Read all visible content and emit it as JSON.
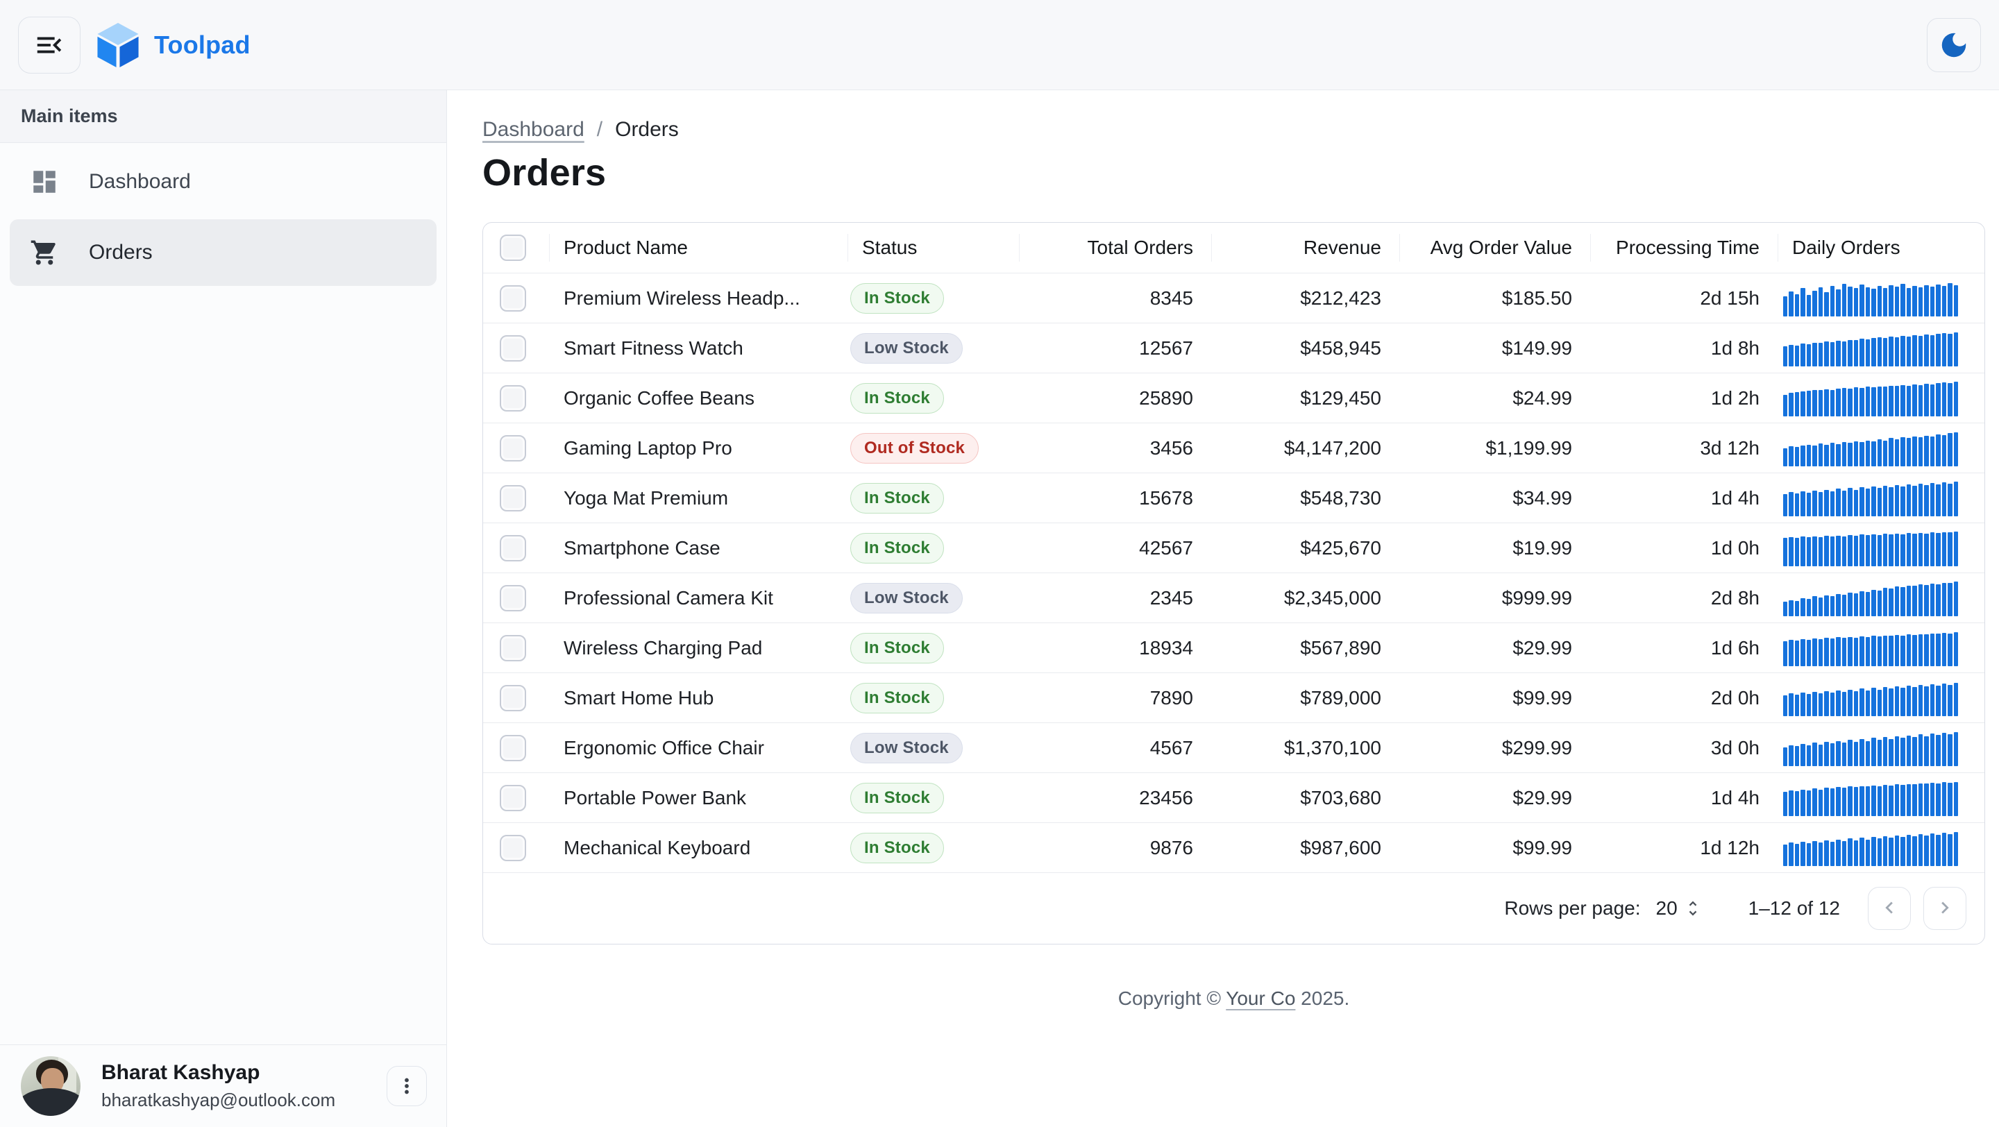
{
  "topbar": {
    "app_name": "Toolpad"
  },
  "theme": {
    "brand_blue": "#1b78e8",
    "logo_top": "#a6d3fb",
    "logo_left": "#2186f0",
    "logo_right": "#1566d8",
    "moon_blue": "#1565c0",
    "spark_blue": "#1572dd"
  },
  "sidebar": {
    "section": "Main items",
    "items": [
      {
        "label": "Dashboard",
        "icon": "dashboard-icon",
        "selected": false
      },
      {
        "label": "Orders",
        "icon": "cart-icon",
        "selected": true
      }
    ]
  },
  "breadcrumb": {
    "parent": "Dashboard",
    "separator": "/",
    "current": "Orders"
  },
  "page": {
    "title": "Orders"
  },
  "status_styles": {
    "in": {
      "text": "#2e7d32",
      "bg": "#f1faf1",
      "border": "#bfe3c0"
    },
    "low": {
      "text": "#4d5666",
      "bg": "#e9ebf2",
      "border": "#d9deea"
    },
    "out": {
      "text": "#b02a20",
      "bg": "#fdefee",
      "border": "#f5c5c2"
    }
  },
  "table": {
    "columns": [
      {
        "key": "checkbox",
        "label": "",
        "align": "left"
      },
      {
        "key": "product",
        "label": "Product Name",
        "align": "left"
      },
      {
        "key": "status",
        "label": "Status",
        "align": "left"
      },
      {
        "key": "total_orders",
        "label": "Total Orders",
        "align": "right"
      },
      {
        "key": "revenue",
        "label": "Revenue",
        "align": "right"
      },
      {
        "key": "avg_order_value",
        "label": "Avg Order Value",
        "align": "right"
      },
      {
        "key": "processing_time",
        "label": "Processing Time",
        "align": "right"
      },
      {
        "key": "daily_orders",
        "label": "Daily Orders",
        "align": "left"
      }
    ],
    "rows": [
      {
        "product": "Premium Wireless Headp...",
        "status": "In Stock",
        "status_type": "in",
        "total_orders": "8345",
        "revenue": "$212,423",
        "avg_order_value": "$185.50",
        "processing_time": "2d 15h",
        "daily_orders": [
          55,
          70,
          62,
          78,
          60,
          72,
          80,
          68,
          85,
          75,
          90,
          82,
          78,
          88,
          80,
          76,
          84,
          79,
          86,
          82,
          90,
          78,
          84,
          80,
          86,
          82,
          88,
          84,
          92,
          86
        ]
      },
      {
        "product": "Smart Fitness Watch",
        "status": "Low Stock",
        "status_type": "low",
        "total_orders": "12567",
        "revenue": "$458,945",
        "avg_order_value": "$149.99",
        "processing_time": "1d 8h",
        "daily_orders": [
          55,
          60,
          58,
          63,
          62,
          66,
          65,
          70,
          68,
          72,
          70,
          74,
          73,
          76,
          75,
          78,
          80,
          78,
          82,
          80,
          84,
          82,
          86,
          85,
          88,
          87,
          90,
          92,
          91,
          95
        ]
      },
      {
        "product": "Organic Coffee Beans",
        "status": "In Stock",
        "status_type": "in",
        "total_orders": "25890",
        "revenue": "$129,450",
        "avg_order_value": "$24.99",
        "processing_time": "1d 2h",
        "daily_orders": [
          60,
          65,
          68,
          70,
          72,
          74,
          73,
          75,
          74,
          76,
          78,
          77,
          80,
          79,
          82,
          81,
          83,
          82,
          85,
          84,
          86,
          85,
          88,
          87,
          90,
          89,
          92,
          94,
          93,
          96
        ]
      },
      {
        "product": "Gaming Laptop Pro",
        "status": "Out of Stock",
        "status_type": "out",
        "total_orders": "3456",
        "revenue": "$4,147,200",
        "avg_order_value": "$1,199.99",
        "processing_time": "3d 12h",
        "daily_orders": [
          50,
          55,
          53,
          58,
          60,
          57,
          63,
          60,
          66,
          62,
          68,
          65,
          70,
          68,
          72,
          70,
          75,
          72,
          78,
          75,
          80,
          78,
          82,
          80,
          85,
          83,
          88,
          86,
          92,
          95
        ]
      },
      {
        "product": "Yoga Mat Premium",
        "status": "In Stock",
        "status_type": "in",
        "total_orders": "15678",
        "revenue": "$548,730",
        "avg_order_value": "$34.99",
        "processing_time": "1d 4h",
        "daily_orders": [
          62,
          68,
          64,
          70,
          66,
          72,
          68,
          74,
          70,
          76,
          72,
          78,
          74,
          80,
          76,
          82,
          78,
          84,
          80,
          86,
          82,
          88,
          84,
          90,
          86,
          92,
          88,
          94,
          90,
          96
        ]
      },
      {
        "product": "Smartphone Case",
        "status": "In Stock",
        "status_type": "in",
        "total_orders": "42567",
        "revenue": "$425,670",
        "avg_order_value": "$19.99",
        "processing_time": "1d 0h",
        "daily_orders": [
          78,
          80,
          79,
          82,
          80,
          83,
          81,
          84,
          82,
          85,
          83,
          86,
          85,
          88,
          86,
          89,
          87,
          90,
          88,
          91,
          89,
          92,
          90,
          93,
          91,
          94,
          92,
          95,
          94,
          96
        ]
      },
      {
        "product": "Professional Camera Kit",
        "status": "Low Stock",
        "status_type": "low",
        "total_orders": "2345",
        "revenue": "$2,345,000",
        "avg_order_value": "$999.99",
        "processing_time": "2d 8h",
        "daily_orders": [
          40,
          45,
          42,
          50,
          48,
          55,
          52,
          58,
          56,
          62,
          60,
          66,
          64,
          70,
          68,
          74,
          72,
          78,
          76,
          82,
          80,
          85,
          84,
          88,
          86,
          90,
          89,
          93,
          92,
          96
        ]
      },
      {
        "product": "Wireless Charging Pad",
        "status": "In Stock",
        "status_type": "in",
        "total_orders": "18934",
        "revenue": "$567,890",
        "avg_order_value": "$29.99",
        "processing_time": "1d 6h",
        "daily_orders": [
          70,
          73,
          71,
          75,
          73,
          77,
          75,
          78,
          76,
          80,
          78,
          81,
          79,
          82,
          81,
          84,
          82,
          85,
          84,
          86,
          85,
          88,
          86,
          89,
          88,
          91,
          90,
          92,
          91,
          94
        ]
      },
      {
        "product": "Smart Home Hub",
        "status": "In Stock",
        "status_type": "in",
        "total_orders": "7890",
        "revenue": "$789,000",
        "avg_order_value": "$99.99",
        "processing_time": "2d 0h",
        "daily_orders": [
          58,
          64,
          60,
          66,
          62,
          68,
          64,
          70,
          66,
          72,
          68,
          74,
          70,
          76,
          72,
          78,
          74,
          80,
          76,
          82,
          78,
          84,
          80,
          86,
          82,
          88,
          84,
          90,
          86,
          92
        ]
      },
      {
        "product": "Ergonomic Office Chair",
        "status": "Low Stock",
        "status_type": "low",
        "total_orders": "4567",
        "revenue": "$1,370,100",
        "avg_order_value": "$299.99",
        "processing_time": "3d 0h",
        "daily_orders": [
          52,
          58,
          55,
          62,
          58,
          65,
          60,
          68,
          63,
          70,
          66,
          73,
          68,
          75,
          70,
          78,
          73,
          80,
          75,
          82,
          78,
          85,
          80,
          88,
          83,
          90,
          86,
          92,
          89,
          95
        ]
      },
      {
        "product": "Portable Power Bank",
        "status": "In Stock",
        "status_type": "in",
        "total_orders": "23456",
        "revenue": "$703,680",
        "avg_order_value": "$29.99",
        "processing_time": "1d 4h",
        "daily_orders": [
          68,
          72,
          70,
          74,
          72,
          76,
          74,
          78,
          76,
          80,
          78,
          82,
          80,
          83,
          82,
          85,
          83,
          86,
          85,
          88,
          86,
          89,
          88,
          91,
          90,
          92,
          91,
          94,
          93,
          95
        ]
      },
      {
        "product": "Mechanical Keyboard",
        "status": "In Stock",
        "status_type": "in",
        "total_orders": "9876",
        "revenue": "$987,600",
        "avg_order_value": "$99.99",
        "processing_time": "1d 12h",
        "daily_orders": [
          60,
          66,
          62,
          68,
          64,
          70,
          66,
          72,
          68,
          74,
          70,
          76,
          72,
          78,
          74,
          80,
          76,
          82,
          78,
          84,
          80,
          86,
          82,
          88,
          84,
          90,
          86,
          92,
          88,
          94
        ]
      }
    ]
  },
  "pagination": {
    "rows_per_page_label": "Rows per page:",
    "rows_per_page_value": "20",
    "range_label": "1–12 of 12"
  },
  "footer": {
    "prefix": "Copyright © ",
    "company": "Your Co",
    "suffix": " 2025."
  },
  "user": {
    "name": "Bharat Kashyap",
    "email": "bharatkashyap@outlook.com"
  }
}
